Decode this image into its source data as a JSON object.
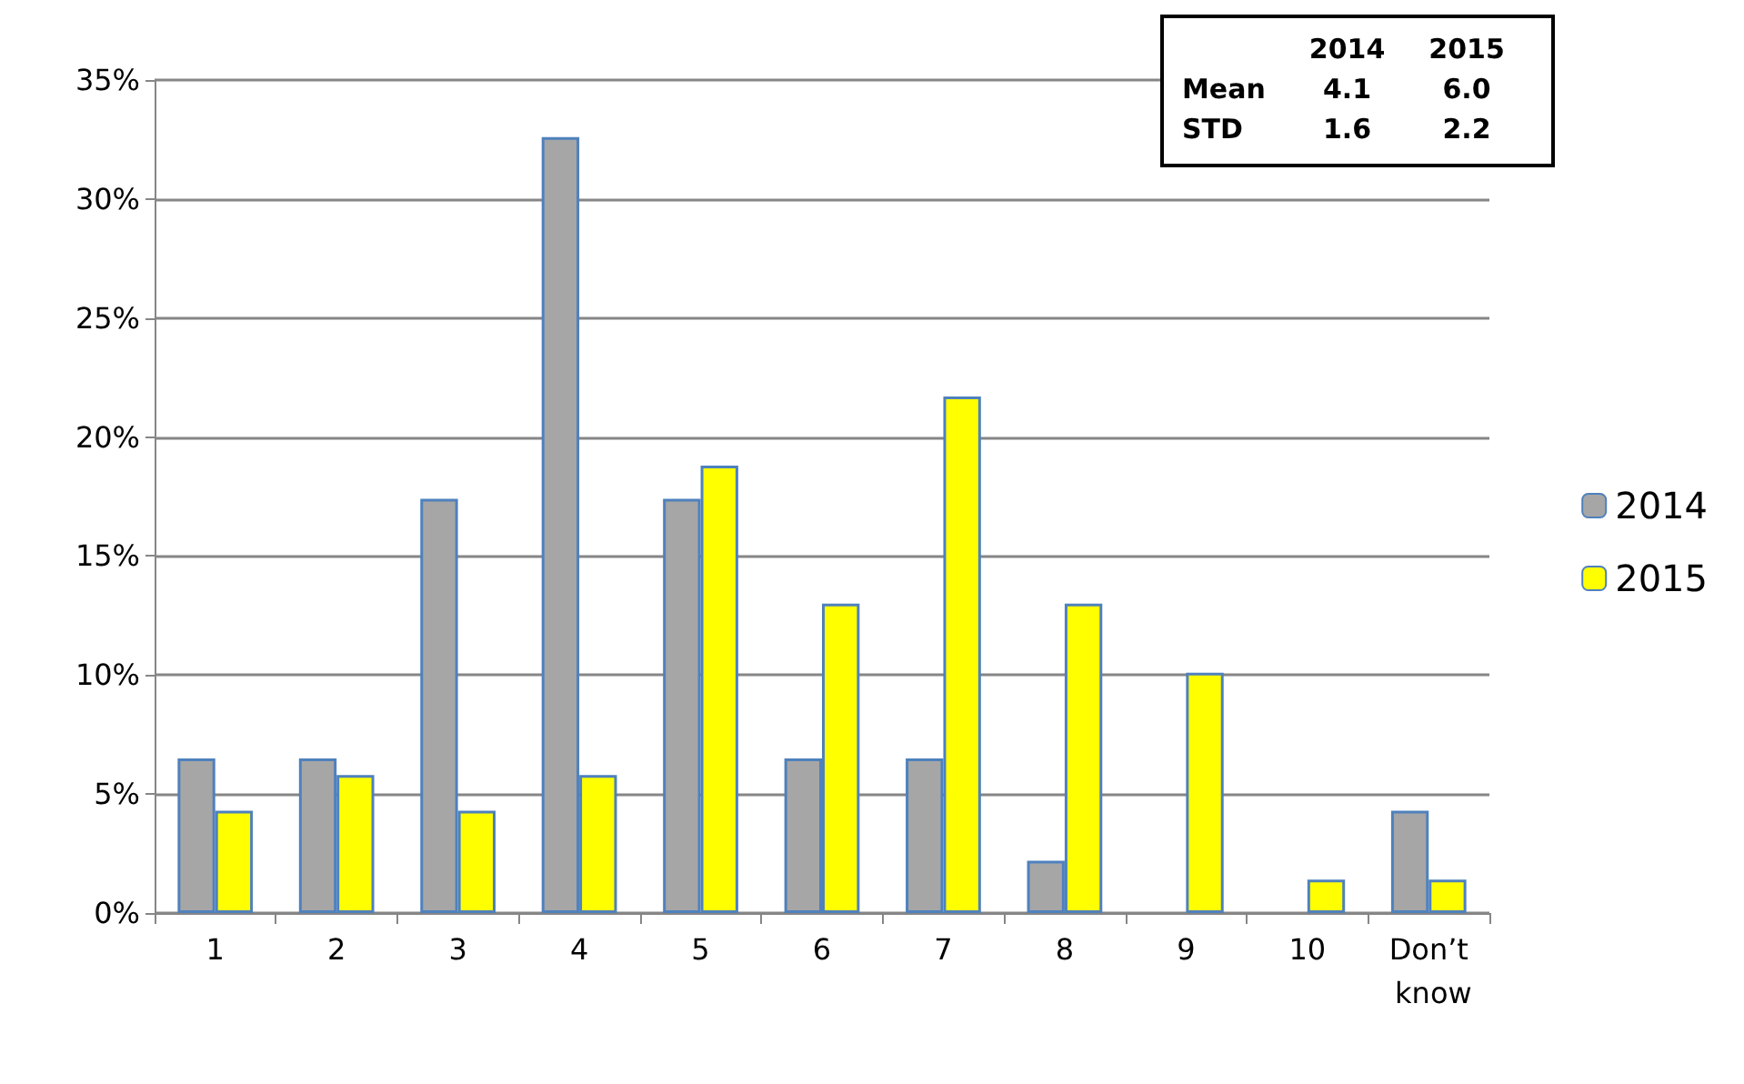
{
  "chart_data": {
    "type": "bar",
    "categories": [
      "1",
      "2",
      "3",
      "4",
      "5",
      "6",
      "7",
      "8",
      "9",
      "10",
      "Don’t know"
    ],
    "series": [
      {
        "name": "2014",
        "color": "#a6a6a6",
        "values": [
          6.5,
          6.5,
          17.4,
          32.6,
          17.4,
          6.5,
          6.5,
          2.2,
          0,
          0,
          4.3
        ]
      },
      {
        "name": "2015",
        "color": "#ffff00",
        "values": [
          4.3,
          5.8,
          4.3,
          5.8,
          18.8,
          13.0,
          21.7,
          13.0,
          10.1,
          1.4,
          1.4
        ]
      }
    ],
    "ylim": [
      0,
      35
    ],
    "yticks": [
      {
        "value": 0,
        "label": "0%"
      },
      {
        "value": 5,
        "label": "5%"
      },
      {
        "value": 10,
        "label": "10%"
      },
      {
        "value": 15,
        "label": "15%"
      },
      {
        "value": 20,
        "label": "20%"
      },
      {
        "value": 25,
        "label": "25%"
      },
      {
        "value": 30,
        "label": "30%"
      },
      {
        "value": 35,
        "label": "35%"
      }
    ],
    "grid": "y",
    "legend": "right",
    "annotations": [
      "2014",
      "2015",
      "Mean",
      "4.1",
      "6.0",
      "STD",
      "1.6",
      "2.2"
    ]
  }
}
